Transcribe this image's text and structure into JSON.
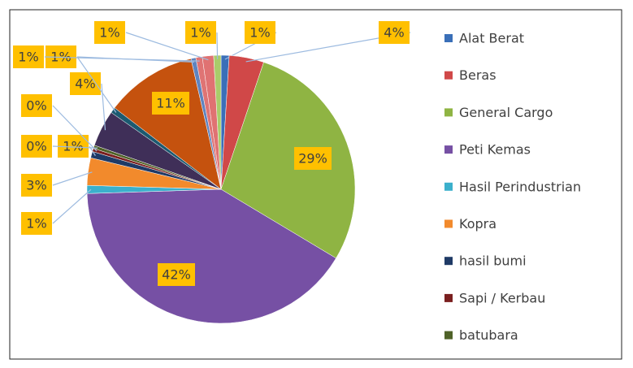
{
  "chart_data": {
    "type": "pie",
    "categories": [
      "Alat Berat",
      "Beras",
      "General Cargo",
      "Peti Kemas",
      "Hasil Perindustrian",
      "Kopra",
      "hasil bumi",
      "Sapi / Kerbau",
      "batubara",
      null,
      null,
      null,
      null,
      null,
      null,
      null
    ],
    "values": [
      1.0,
      4.3,
      29.2,
      42.0,
      1.0,
      3.4,
      0.8,
      0.4,
      0.4,
      4.5,
      0.7,
      11.3,
      0.6,
      0.8,
      1.4,
      0.9
    ],
    "value_labels": [
      "1%",
      "4%",
      "29%",
      "42%",
      "1%",
      "3%",
      "1%",
      "0%",
      "0%",
      "4%",
      "1%",
      "11%",
      "1%",
      "1%",
      "1%",
      "1%"
    ],
    "colors": [
      "#3a6fb8",
      "#d04848",
      "#8fb443",
      "#7650a4",
      "#3bb0cc",
      "#f28a2c",
      "#1f3a66",
      "#7a1f1f",
      "#4f6228",
      "#3f2f58",
      "#1c5a70",
      "#c5520e",
      "#5f84bf",
      "#df7474",
      "#e07272",
      "#a9cc6a"
    ],
    "legend": "right"
  }
}
